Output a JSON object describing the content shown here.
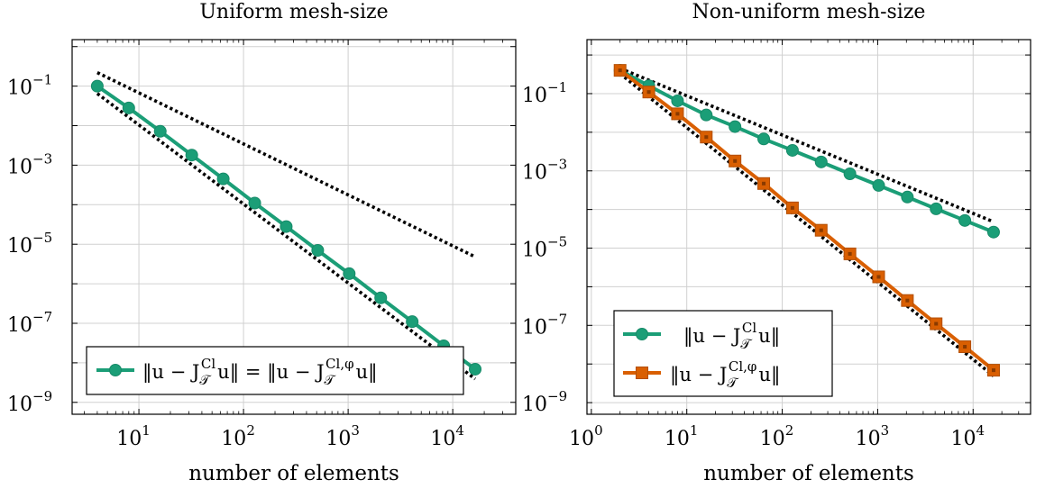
{
  "colors": {
    "green": "#1b9e77",
    "orange": "#d95f02",
    "grid": "#d0d0d0",
    "ref": "#000000"
  },
  "chart_data": [
    {
      "type": "line",
      "title": "Uniform mesh-size",
      "xlabel": "number of elements",
      "ylabel": "",
      "xscale": "log",
      "yscale": "log",
      "xlim": [
        2.3,
        40000
      ],
      "ylim": [
        5e-10,
        1.5
      ],
      "grid": true,
      "legend_position": "bottom-left",
      "xticks": [
        10,
        100,
        1000,
        10000
      ],
      "xtick_labels": [
        {
          "base": "10",
          "exp": "1"
        },
        {
          "base": "10",
          "exp": "2"
        },
        {
          "base": "10",
          "exp": "3"
        },
        {
          "base": "10",
          "exp": "4"
        }
      ],
      "yticks": [
        0.1,
        0.001,
        1e-05,
        1e-07,
        1e-09
      ],
      "ytick_labels": [
        {
          "base": "10",
          "exp": "−1"
        },
        {
          "base": "10",
          "exp": "−3"
        },
        {
          "base": "10",
          "exp": "−5"
        },
        {
          "base": "10",
          "exp": "−7"
        },
        {
          "base": "10",
          "exp": "−9"
        }
      ],
      "series": [
        {
          "name": "‖u − J_T^Cl u‖ = ‖u − J_T^{Cl,φ} u‖",
          "legend_parts": {
            "a": "‖u − J",
            "sub1": "𝒯",
            "sup1": "Cl",
            "b": "u‖ = ‖u − J",
            "sub2": "𝒯",
            "sup2": "Cl,φ",
            "c": "u‖"
          },
          "color": "#1b9e77",
          "marker": "circle",
          "x": [
            4,
            8,
            16,
            32,
            64,
            128,
            256,
            512,
            1024,
            2048,
            4096,
            8192,
            16384
          ],
          "y": [
            0.1,
            0.028,
            0.0072,
            0.0018,
            0.00045,
            0.00011,
            2.8e-05,
            7e-06,
            1.8e-06,
            4.4e-07,
            1.1e-07,
            2.7e-08,
            6.9e-09
          ]
        }
      ],
      "reference_lines": [
        {
          "style": "dotted",
          "x": [
            4,
            16384
          ],
          "y": [
            0.22,
            4.8e-06
          ]
        },
        {
          "style": "dotted",
          "x": [
            4,
            16384
          ],
          "y": [
            0.065,
            3.9e-09
          ]
        }
      ]
    },
    {
      "type": "line",
      "title": "Non-uniform mesh-size",
      "xlabel": "number of elements",
      "ylabel": "",
      "xscale": "log",
      "yscale": "log",
      "xlim": [
        0.9,
        40000
      ],
      "ylim": [
        5e-10,
        2.5
      ],
      "grid": true,
      "legend_position": "bottom-left",
      "xticks": [
        1,
        10,
        100,
        1000,
        10000
      ],
      "xtick_labels": [
        {
          "base": "10",
          "exp": "0"
        },
        {
          "base": "10",
          "exp": "1"
        },
        {
          "base": "10",
          "exp": "2"
        },
        {
          "base": "10",
          "exp": "3"
        },
        {
          "base": "10",
          "exp": "4"
        }
      ],
      "yticks": [
        0.1,
        0.001,
        1e-05,
        1e-07,
        1e-09
      ],
      "ytick_labels": [
        {
          "base": "10",
          "exp": "−1"
        },
        {
          "base": "10",
          "exp": "−3"
        },
        {
          "base": "10",
          "exp": "−5"
        },
        {
          "base": "10",
          "exp": "−7"
        },
        {
          "base": "10",
          "exp": "−9"
        }
      ],
      "series": [
        {
          "name": "‖u − J_T^Cl u‖",
          "legend_parts": {
            "a": "‖u − J",
            "sub1": "𝒯",
            "sup1": "Cl",
            "c": "u‖"
          },
          "color": "#1b9e77",
          "marker": "circle",
          "x": [
            2,
            4,
            8,
            16,
            32,
            64,
            128,
            256,
            512,
            1024,
            2048,
            4096,
            8192,
            16384
          ],
          "y": [
            0.4,
            0.16,
            0.065,
            0.028,
            0.014,
            0.0067,
            0.0034,
            0.0017,
            0.00084,
            0.00042,
            0.00021,
            0.000104,
            5.2e-05,
            2.6e-05
          ]
        },
        {
          "name": "‖u − J_T^{Cl,φ} u‖",
          "legend_parts": {
            "a": "‖u − J",
            "sub1": "𝒯",
            "sup1": "Cl,φ",
            "c": "u‖"
          },
          "color": "#d95f02",
          "marker": "square",
          "x": [
            2,
            4,
            8,
            16,
            32,
            64,
            128,
            256,
            512,
            1024,
            2048,
            4096,
            8192,
            16384
          ],
          "y": [
            0.4,
            0.11,
            0.03,
            0.0075,
            0.0018,
            0.00047,
            0.00011,
            2.9e-05,
            7.1e-06,
            1.8e-06,
            4.4e-07,
            1.1e-07,
            2.8e-08,
            6.9e-09
          ]
        }
      ],
      "reference_lines": [
        {
          "style": "dotted",
          "x": [
            2,
            16384
          ],
          "y": [
            0.45,
            4.8e-05
          ]
        },
        {
          "style": "dotted",
          "x": [
            2,
            16384
          ],
          "y": [
            0.33,
            4.9e-09
          ]
        }
      ]
    }
  ]
}
